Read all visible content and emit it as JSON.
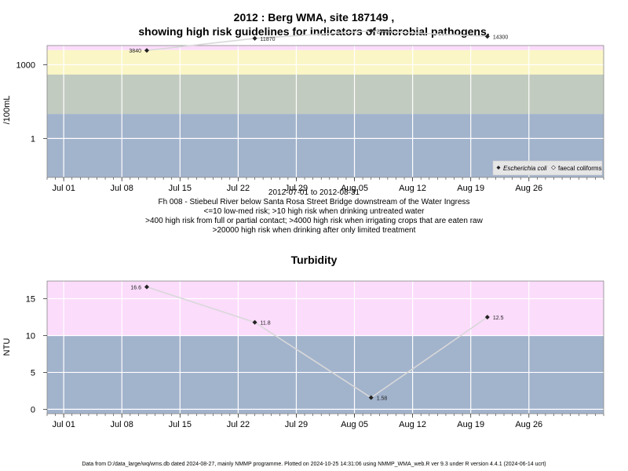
{
  "header": {
    "title_line1": "2012 : Berg WMA, site 187149 ,",
    "title_line2": "showing high risk guidelines for indicators of microbial pathogens."
  },
  "caption": {
    "date_range": "2012-07-01 to 2012-08-31",
    "site": "Fh 008 - Stiebeul River below Santa Rosa Street Bridge downstream of the Water Ingress",
    "line1": "<=10 low-med risk; >10 high risk when drinking untreated water",
    "line2": ">400 high risk from full or partial contact; >4000 high risk when irrigating crops that are eaten raw",
    "line3": ">20000 high risk when drinking after only limited treatment"
  },
  "turbidity_title": "Turbidity",
  "footer": "Data from D:/data_large/wq/wms.db dated 2024-08-27, mainly NMMP programme. Plotted on 2024-10-25 14:31:06 using NMMP_WMA_web.R ver 9.3 under R version 4.4.1 (2024-06-14 ucrt)",
  "colors": {
    "band_blue": "#a2b3cc",
    "band_green": "#c2cbbf",
    "band_yellow": "#fbf6c6",
    "band_pink": "#fbdcfb",
    "band_red": "#f7b6c6",
    "line": "#d8d8d8",
    "point": "#222222"
  },
  "chart_data": [
    {
      "type": "scatter",
      "ylabel": "/100mL",
      "yscale": "log",
      "yticks": [
        1,
        1000
      ],
      "xticks": [
        "Jul 01",
        "Jul 08",
        "Jul 15",
        "Jul 22",
        "Jul 29",
        "Aug 05",
        "Aug 12",
        "Aug 19",
        "Aug 26"
      ],
      "xrange": [
        "2012-06-29",
        "2012-09-04"
      ],
      "bands": [
        10,
        400,
        4000,
        20000
      ],
      "series": [
        {
          "name": "Escherichia coli",
          "x": [
            "2012-07-11",
            "2012-07-24",
            "2012-08-07",
            "2012-08-21"
          ],
          "values": [
            3840,
            11870,
            23820,
            14300
          ],
          "labels": [
            "3840",
            "11870",
            "23820",
            "14300"
          ]
        }
      ],
      "legend": [
        "Escherichia coli",
        "faecal coliforms"
      ],
      "legend_position": "bottom-right"
    },
    {
      "type": "scatter",
      "title": "Turbidity",
      "ylabel": "NTU",
      "yticks": [
        0,
        5,
        10,
        15
      ],
      "ylim": [
        -0.6,
        17.4
      ],
      "xticks": [
        "Jul 01",
        "Jul 08",
        "Jul 15",
        "Jul 22",
        "Jul 29",
        "Aug 05",
        "Aug 12",
        "Aug 19",
        "Aug 26"
      ],
      "xrange": [
        "2012-06-29",
        "2012-09-04"
      ],
      "bands": [
        10
      ],
      "series": [
        {
          "name": "Turbidity",
          "x": [
            "2012-07-11",
            "2012-07-24",
            "2012-08-07",
            "2012-08-21"
          ],
          "values": [
            16.6,
            11.8,
            1.58,
            12.5
          ],
          "labels": [
            "16.6",
            "11.8",
            "1.58",
            "12.5"
          ]
        }
      ]
    }
  ]
}
